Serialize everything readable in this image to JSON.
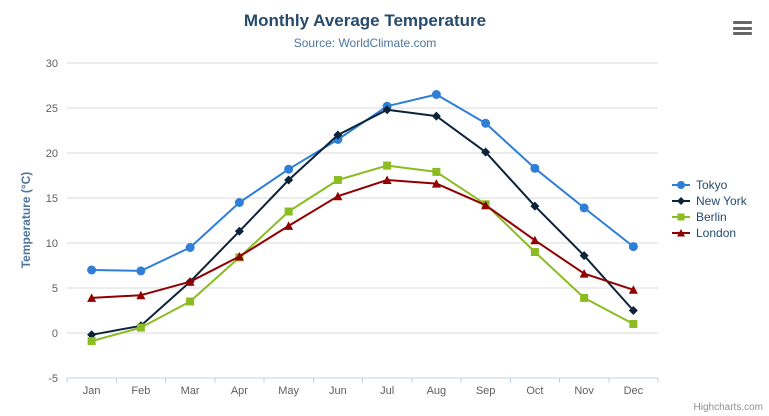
{
  "chart_data": {
    "type": "line",
    "title": "Monthly Average Temperature",
    "subtitle": "Source: WorldClimate.com",
    "xlabel": "",
    "ylabel": "Temperature (°C)",
    "credits": "Highcharts.com",
    "categories": [
      "Jan",
      "Feb",
      "Mar",
      "Apr",
      "May",
      "Jun",
      "Jul",
      "Aug",
      "Sep",
      "Oct",
      "Nov",
      "Dec"
    ],
    "ylim": [
      -5,
      30
    ],
    "ytick_interval": 5,
    "grid": true,
    "legend_position": "right",
    "series": [
      {
        "name": "Tokyo",
        "color": "#2f7ed8",
        "marker": "circle",
        "values": [
          7.0,
          6.9,
          9.5,
          14.5,
          18.2,
          21.5,
          25.2,
          26.5,
          23.3,
          18.3,
          13.9,
          9.6
        ]
      },
      {
        "name": "New York",
        "color": "#0d233a",
        "marker": "diamond",
        "values": [
          -0.2,
          0.8,
          5.7,
          11.3,
          17.0,
          22.0,
          24.8,
          24.1,
          20.1,
          14.1,
          8.6,
          2.5
        ]
      },
      {
        "name": "Berlin",
        "color": "#8bbc21",
        "marker": "square",
        "values": [
          -0.9,
          0.6,
          3.5,
          8.4,
          13.5,
          17.0,
          18.6,
          17.9,
          14.3,
          9.0,
          3.9,
          1.0
        ]
      },
      {
        "name": "London",
        "color": "#910000",
        "marker": "triangle",
        "values": [
          3.9,
          4.2,
          5.7,
          8.5,
          11.9,
          15.2,
          17.0,
          16.6,
          14.2,
          10.3,
          6.6,
          4.8
        ]
      }
    ],
    "colors": {
      "title": "#274b6d",
      "subtitle": "#4d759e",
      "axis_title": "#4d759e",
      "axis_label": "#606060",
      "grid": "#d8d8d8",
      "axis_line": "#c0d0e0",
      "tick": "#c0d0e0",
      "legend_text": "#274b6d",
      "credits": "#909090",
      "menu_icon": "#666666",
      "background": "#ffffff"
    }
  }
}
